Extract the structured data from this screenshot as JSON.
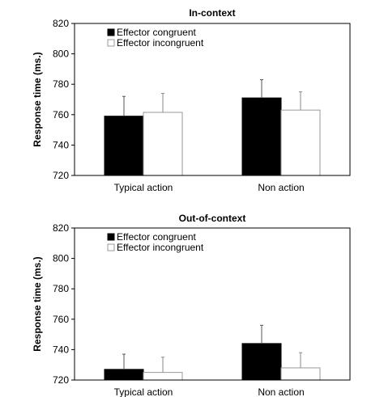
{
  "chart_data": [
    {
      "type": "bar",
      "title": "In-context",
      "xlabel": "",
      "ylabel": "Response time (ms.)",
      "ylim": [
        720,
        820
      ],
      "yticks": [
        720,
        740,
        760,
        780,
        800,
        820
      ],
      "categories": [
        "Typical action",
        "Non action"
      ],
      "series": [
        {
          "name": "Effector congruent",
          "color": "#000000",
          "values": [
            759,
            771
          ],
          "errors": [
            13,
            12
          ]
        },
        {
          "name": "Effector incongruent",
          "color": "#ffffff",
          "values": [
            761.5,
            763
          ],
          "errors": [
            12.5,
            12
          ]
        }
      ],
      "legend_position": "top-left",
      "grid": false
    },
    {
      "type": "bar",
      "title": "Out-of-context",
      "xlabel": "",
      "ylabel": "Response time (ms.)",
      "ylim": [
        720,
        820
      ],
      "yticks": [
        720,
        740,
        760,
        780,
        800,
        820
      ],
      "categories": [
        "Typical action",
        "Non action"
      ],
      "series": [
        {
          "name": "Effector congruent",
          "color": "#000000",
          "values": [
            727,
            744
          ],
          "errors": [
            10,
            12
          ]
        },
        {
          "name": "Effector incongruent",
          "color": "#ffffff",
          "values": [
            725,
            728
          ],
          "errors": [
            10,
            10
          ]
        }
      ],
      "legend_position": "top-left",
      "grid": false
    }
  ]
}
